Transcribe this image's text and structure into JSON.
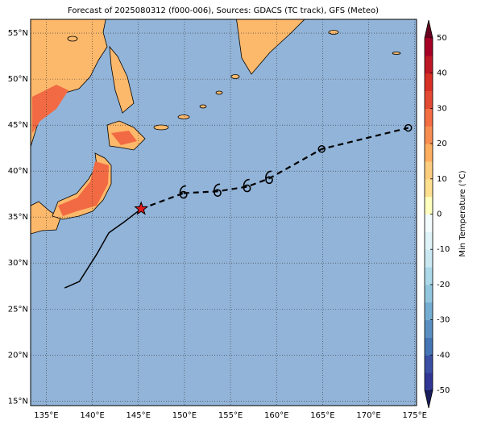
{
  "chart_data": {
    "type": "map",
    "title": "Forecast of 2025080312 (f000-006), Sources: GDACS (TC track), GFS (Meteo)",
    "xlim": [
      133.3,
      175.2
    ],
    "ylim": [
      14.5,
      56.5
    ],
    "xticks": [
      {
        "value": 135,
        "label": "135°E"
      },
      {
        "value": 140,
        "label": "140°E"
      },
      {
        "value": 145,
        "label": "145°E"
      },
      {
        "value": 150,
        "label": "150°E"
      },
      {
        "value": 155,
        "label": "155°E"
      },
      {
        "value": 160,
        "label": "160°E"
      },
      {
        "value": 165,
        "label": "165°E"
      },
      {
        "value": 170,
        "label": "170°E"
      },
      {
        "value": 175,
        "label": "175°E"
      }
    ],
    "yticks": [
      {
        "value": 15,
        "label": "15°N"
      },
      {
        "value": 20,
        "label": "20°N"
      },
      {
        "value": 25,
        "label": "25°N"
      },
      {
        "value": 30,
        "label": "30°N"
      },
      {
        "value": 35,
        "label": "35°N"
      },
      {
        "value": 40,
        "label": "40°N"
      },
      {
        "value": 45,
        "label": "45°N"
      },
      {
        "value": 50,
        "label": "50°N"
      },
      {
        "value": 55,
        "label": "55°N"
      }
    ],
    "grid": true,
    "ocean_color": "#92b4d9",
    "series": [
      {
        "color": "#000000",
        "style": "solid",
        "x": [
          137.0,
          138.6,
          140.5,
          141.8,
          143.5,
          145.3
        ],
        "y": [
          27.3,
          28.0,
          31.0,
          33.3,
          34.5,
          35.9
        ],
        "end_marker": "star",
        "end_color": "#e41a1c"
      },
      {
        "color": "#000000",
        "style": "dashed",
        "x": [
          149.9,
          153.6,
          156.8,
          159.2,
          164.9,
          174.3
        ],
        "y": [
          37.6,
          37.8,
          38.3,
          39.2,
          42.4,
          44.7
        ],
        "markers": [
          "typhoon",
          "typhoon",
          "typhoon",
          "typhoon",
          "circle",
          "circle"
        ]
      }
    ],
    "colorbar": {
      "label": "Min Temperature (°C)",
      "lim": [
        -50,
        50
      ],
      "ticks": [
        -50,
        -40,
        -30,
        -20,
        -10,
        0,
        10,
        20,
        30,
        40,
        50
      ],
      "colors": [
        "#313695",
        "#3a4fa3",
        "#4575b4",
        "#5b8fc2",
        "#74add1",
        "#92c5de",
        "#abd9e9",
        "#c9e8f2",
        "#e0f3f8",
        "#f3fbfc",
        "#ffffbf",
        "#fee090",
        "#fdcd7f",
        "#fdae61",
        "#f88d52",
        "#f46d43",
        "#e34a33",
        "#d73027",
        "#bd1726",
        "#a50026"
      ],
      "under_color": "#1a1d5c",
      "over_color": "#67001f"
    }
  }
}
